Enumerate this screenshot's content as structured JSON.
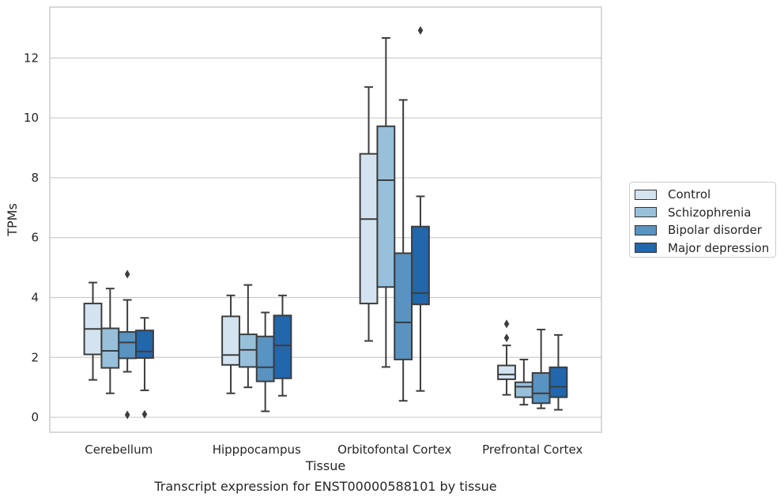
{
  "caption": "Transcript expression for ENST00000588101 by tissue",
  "chart_data": {
    "type": "box",
    "title": "",
    "xlabel": "Tissue",
    "ylabel": "TPMs",
    "ylim": [
      -0.5,
      13.7
    ],
    "yticks": [
      0,
      2,
      4,
      6,
      8,
      10,
      12
    ],
    "grid": "horizontal",
    "legend_position": "right",
    "categories": [
      "Cerebellum",
      "Hipppocampus",
      "Orbitofontal Cortex",
      "Prefrontal Cortex"
    ],
    "series": [
      {
        "name": "Control",
        "color": "#d4e3f0",
        "boxes": [
          {
            "whislo": 1.25,
            "q1": 2.1,
            "med": 2.95,
            "q3": 3.8,
            "whishi": 4.5,
            "fliers": []
          },
          {
            "whislo": 0.8,
            "q1": 1.75,
            "med": 2.08,
            "q3": 3.37,
            "whishi": 4.07,
            "fliers": []
          },
          {
            "whislo": 2.55,
            "q1": 3.8,
            "med": 6.62,
            "q3": 8.8,
            "whishi": 11.03,
            "fliers": []
          },
          {
            "whislo": 0.75,
            "q1": 1.27,
            "med": 1.43,
            "q3": 1.73,
            "whishi": 2.4,
            "fliers": [
              2.65,
              3.12
            ]
          }
        ]
      },
      {
        "name": "Schizophrenia",
        "color": "#98c0da",
        "boxes": [
          {
            "whislo": 0.8,
            "q1": 1.65,
            "med": 2.22,
            "q3": 2.97,
            "whishi": 4.3,
            "fliers": []
          },
          {
            "whislo": 1.0,
            "q1": 1.68,
            "med": 2.25,
            "q3": 2.77,
            "whishi": 4.42,
            "fliers": []
          },
          {
            "whislo": 1.68,
            "q1": 4.35,
            "med": 7.92,
            "q3": 9.72,
            "whishi": 12.67,
            "fliers": []
          },
          {
            "whislo": 0.42,
            "q1": 0.67,
            "med": 1.02,
            "q3": 1.17,
            "whishi": 1.93,
            "fliers": []
          }
        ]
      },
      {
        "name": "Bipolar disorder",
        "color": "#5893c1",
        "boxes": [
          {
            "whislo": 1.52,
            "q1": 1.97,
            "med": 2.5,
            "q3": 2.85,
            "whishi": 3.92,
            "fliers": [
              0.08,
              4.78
            ]
          },
          {
            "whislo": 0.2,
            "q1": 1.2,
            "med": 1.67,
            "q3": 2.7,
            "whishi": 3.5,
            "fliers": []
          },
          {
            "whislo": 0.55,
            "q1": 1.93,
            "med": 3.17,
            "q3": 5.48,
            "whishi": 10.6,
            "fliers": []
          },
          {
            "whislo": 0.3,
            "q1": 0.47,
            "med": 0.8,
            "q3": 1.48,
            "whishi": 2.93,
            "fliers": []
          }
        ]
      },
      {
        "name": "Major depression",
        "color": "#2266ab",
        "boxes": [
          {
            "whislo": 0.9,
            "q1": 1.98,
            "med": 2.2,
            "q3": 2.9,
            "whishi": 3.32,
            "fliers": [
              0.1
            ]
          },
          {
            "whislo": 0.72,
            "q1": 1.3,
            "med": 2.4,
            "q3": 3.4,
            "whishi": 4.07,
            "fliers": []
          },
          {
            "whislo": 0.88,
            "q1": 3.77,
            "med": 4.15,
            "q3": 6.37,
            "whishi": 7.38,
            "fliers": [
              12.92
            ]
          },
          {
            "whislo": 0.25,
            "q1": 0.67,
            "med": 1.02,
            "q3": 1.67,
            "whishi": 2.75,
            "fliers": []
          }
        ]
      }
    ]
  }
}
